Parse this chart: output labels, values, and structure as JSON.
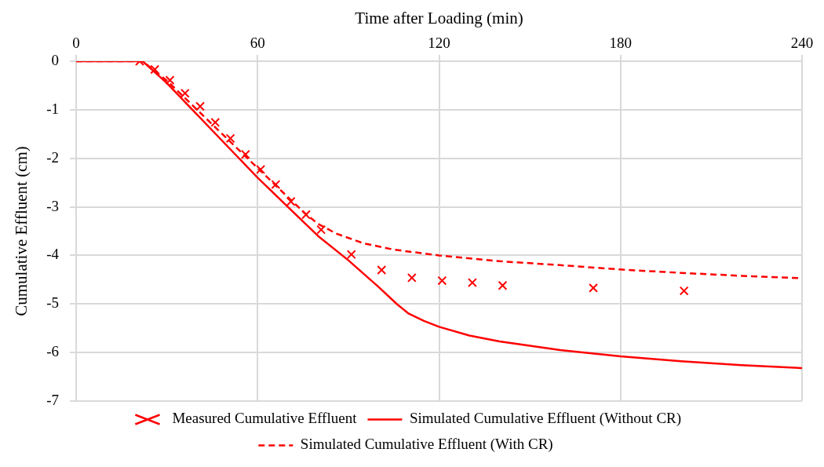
{
  "chart_data": {
    "type": "line",
    "xlabel": "Time after Loading (min)",
    "ylabel": "Cumulative Effluent (cm)",
    "xlim": [
      0,
      240
    ],
    "xticks": [
      0,
      60,
      120,
      180,
      240
    ],
    "ylim": [
      -7,
      0
    ],
    "yticks": [
      0,
      -1,
      -2,
      -3,
      -4,
      -5,
      -6,
      -7
    ],
    "grid": true,
    "legend": "bottom",
    "series": [
      {
        "name": "Measured Cumulative Effluent",
        "type": "scatter",
        "marker": "cross",
        "color": "#ff0000",
        "x": [
          21,
          26,
          31,
          36,
          41,
          46,
          51,
          56,
          61,
          66,
          71,
          76,
          81,
          91,
          101,
          111,
          121,
          131,
          141,
          171,
          201
        ],
        "values": [
          0,
          -0.17,
          -0.39,
          -0.66,
          -0.93,
          -1.26,
          -1.59,
          -1.92,
          -2.23,
          -2.54,
          -2.89,
          -3.16,
          -3.47,
          -3.98,
          -4.3,
          -4.46,
          -4.52,
          -4.56,
          -4.62,
          -4.67,
          -4.73
        ]
      },
      {
        "name": "Simulated Cumulative Effluent (Without CR)",
        "type": "line",
        "marker": "none",
        "line_style": "solid",
        "color": "#ff0000",
        "x": [
          0,
          22,
          30,
          40,
          50,
          60,
          70,
          80,
          90,
          100,
          106,
          110,
          115,
          120,
          130,
          140,
          160,
          180,
          200,
          220,
          240
        ],
        "values": [
          0,
          0,
          -0.45,
          -1.1,
          -1.75,
          -2.4,
          -3.0,
          -3.6,
          -4.1,
          -4.65,
          -5.0,
          -5.2,
          -5.35,
          -5.47,
          -5.65,
          -5.77,
          -5.95,
          -6.08,
          -6.18,
          -6.26,
          -6.32
        ]
      },
      {
        "name": "Simulated Cumulative Effluent (With CR)",
        "type": "line",
        "marker": "none",
        "line_style": "dashed",
        "color": "#ff0000",
        "x": [
          0,
          22,
          30,
          40,
          50,
          60,
          70,
          76,
          80,
          86,
          95,
          105,
          120,
          140,
          160,
          180,
          200,
          220,
          240
        ],
        "values": [
          0,
          0,
          -0.4,
          -1.0,
          -1.6,
          -2.2,
          -2.8,
          -3.15,
          -3.35,
          -3.55,
          -3.75,
          -3.88,
          -4.0,
          -4.12,
          -4.2,
          -4.29,
          -4.36,
          -4.42,
          -4.47
        ]
      }
    ]
  }
}
